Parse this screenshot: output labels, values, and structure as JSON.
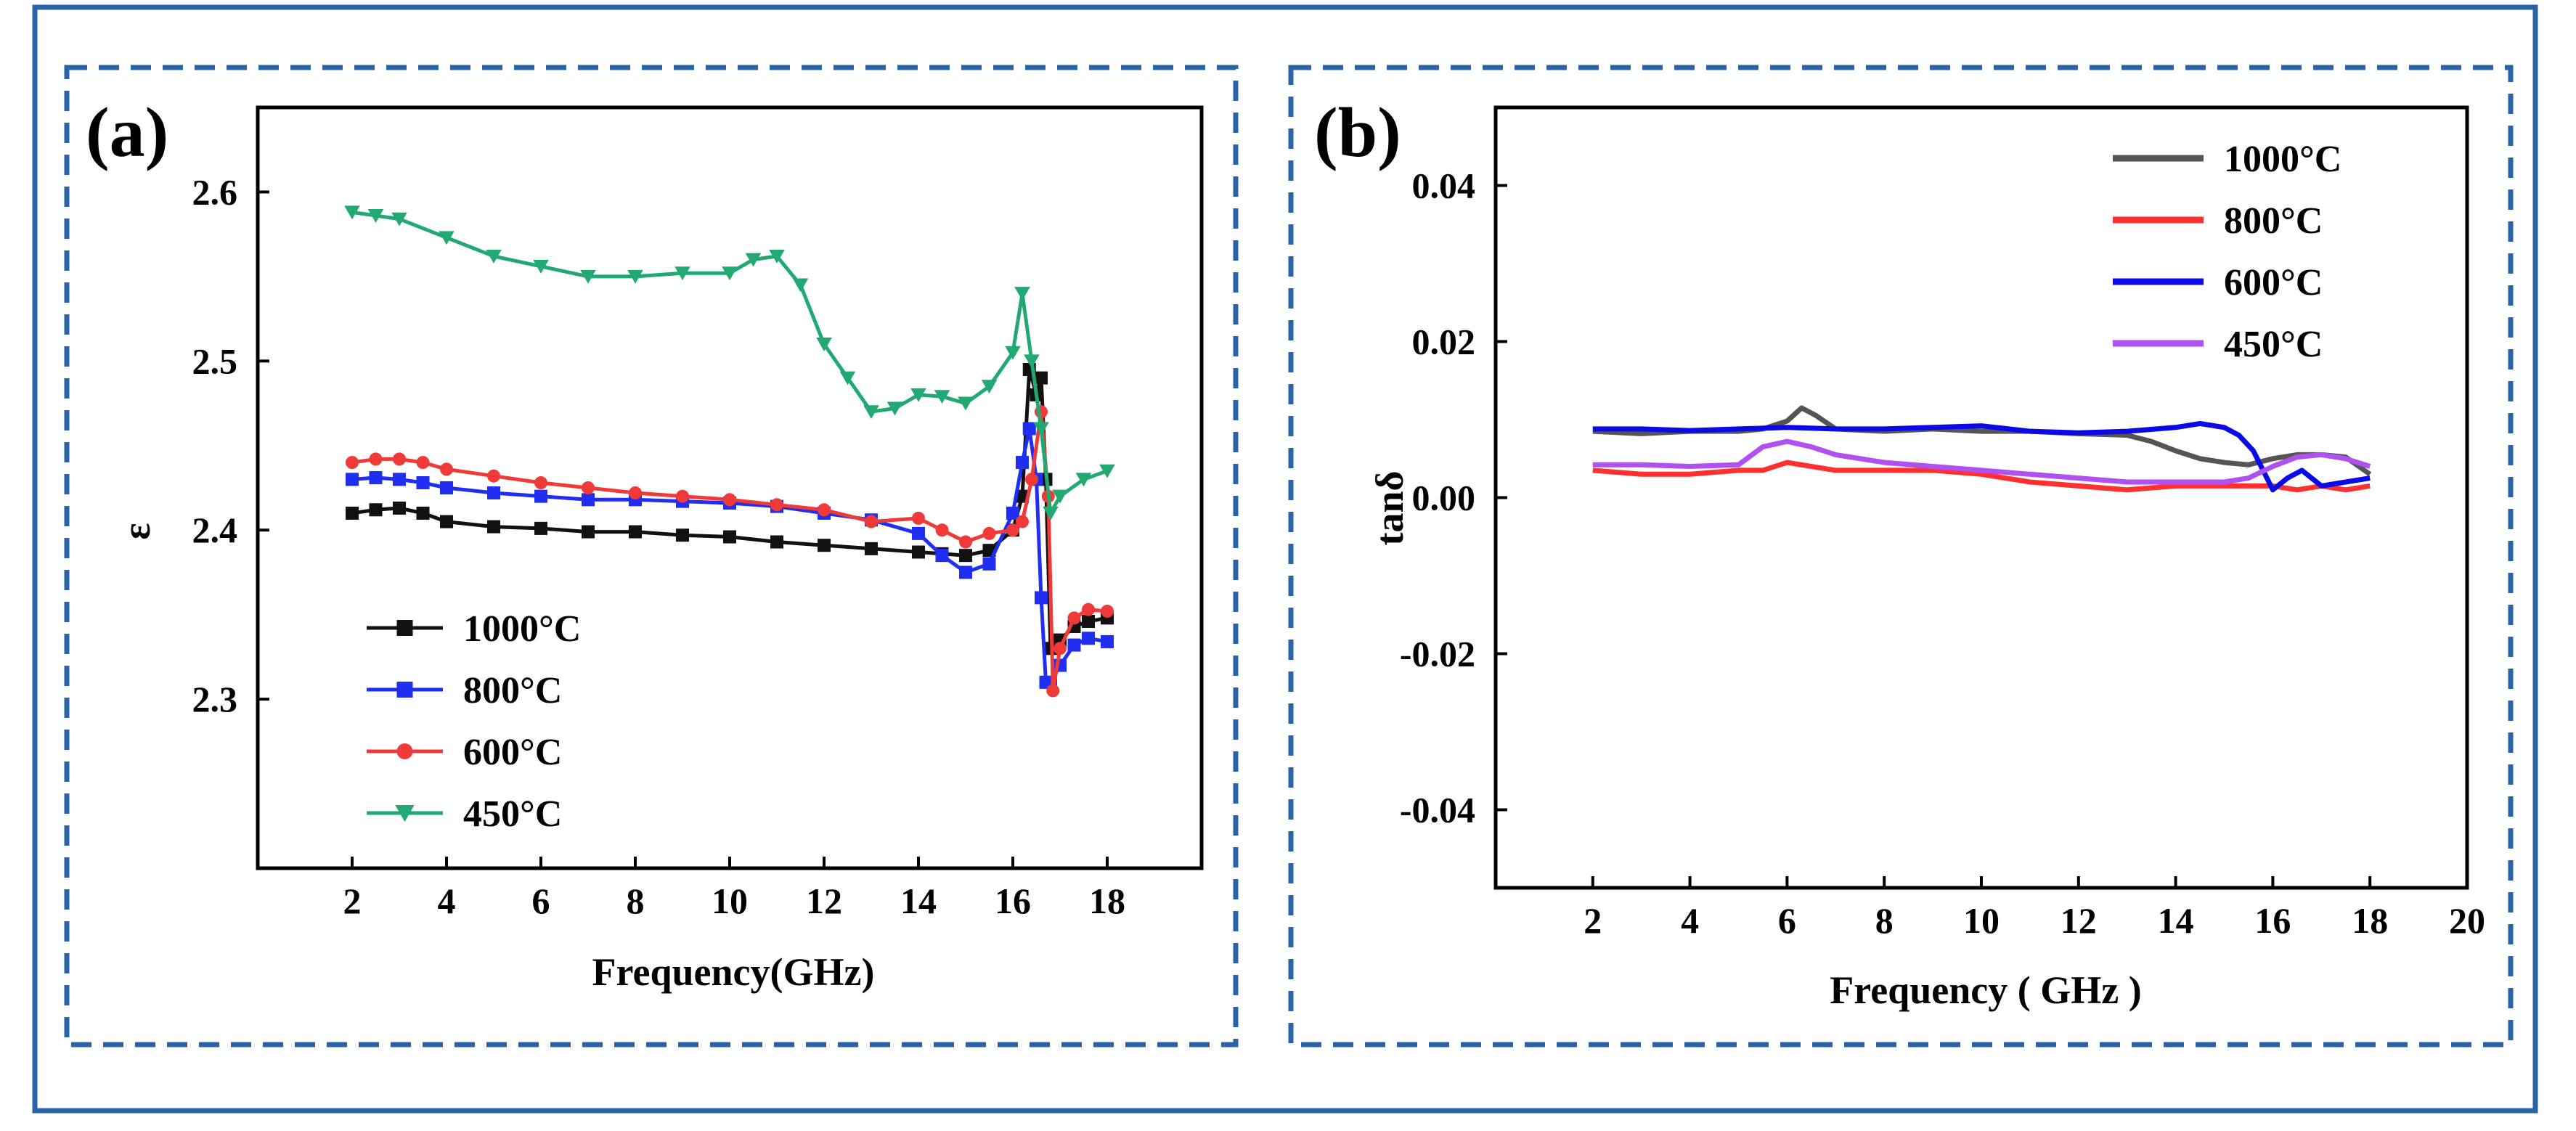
{
  "colors": {
    "frame": "#2a63a8",
    "s1000": "#111111",
    "s800": "#1f2ef0",
    "s600": "#f03a3a",
    "s450": "#22a872",
    "b1000": "#555555",
    "b800": "#ff3030",
    "b600": "#0a0ae6",
    "b450": "#b050f0"
  },
  "chart_data": [
    {
      "type": "line",
      "panel_label": "(a)",
      "title": "",
      "xlabel": "Frequency(GHz)",
      "ylabel": "ε",
      "xlim": [
        0,
        20
      ],
      "ylim": [
        2.2,
        2.65
      ],
      "xticks": [
        2,
        4,
        6,
        8,
        10,
        12,
        14,
        16,
        18
      ],
      "yticks": [
        2.3,
        2.4,
        2.5,
        2.6
      ],
      "ytick_labels": [
        "2.3",
        "2.4",
        "2.5",
        "2.6"
      ],
      "legend_position": "lower-left",
      "series": [
        {
          "name": "1000°C",
          "color_key": "s1000",
          "marker": "square",
          "x": [
            2,
            2.5,
            3,
            3.5,
            4,
            5,
            6,
            7,
            8,
            9,
            10,
            11,
            12,
            13,
            14,
            14.5,
            15,
            15.5,
            16,
            16.2,
            16.35,
            16.5,
            16.6,
            16.7,
            16.8,
            17,
            17.3,
            17.6,
            18
          ],
          "values": [
            2.41,
            2.412,
            2.413,
            2.41,
            2.405,
            2.402,
            2.401,
            2.399,
            2.399,
            2.397,
            2.396,
            2.393,
            2.391,
            2.389,
            2.387,
            2.386,
            2.385,
            2.388,
            2.4,
            2.42,
            2.495,
            2.48,
            2.49,
            2.43,
            2.33,
            2.335,
            2.343,
            2.346,
            2.348
          ]
        },
        {
          "name": "800°C",
          "color_key": "s800",
          "marker": "square",
          "x": [
            2,
            2.5,
            3,
            3.5,
            4,
            5,
            6,
            7,
            8,
            9,
            10,
            11,
            12,
            13,
            14,
            14.5,
            15,
            15.5,
            16,
            16.2,
            16.35,
            16.5,
            16.6,
            16.7,
            16.8,
            17,
            17.3,
            17.6,
            18
          ],
          "values": [
            2.43,
            2.431,
            2.43,
            2.428,
            2.425,
            2.422,
            2.42,
            2.418,
            2.418,
            2.417,
            2.416,
            2.414,
            2.41,
            2.406,
            2.398,
            2.385,
            2.375,
            2.38,
            2.41,
            2.44,
            2.46,
            2.43,
            2.36,
            2.31,
            2.31,
            2.32,
            2.332,
            2.336,
            2.334
          ]
        },
        {
          "name": "600°C",
          "color_key": "s600",
          "marker": "circle",
          "x": [
            2,
            2.5,
            3,
            3.5,
            4,
            5,
            6,
            7,
            8,
            9,
            10,
            11,
            12,
            13,
            14,
            14.5,
            15,
            15.5,
            16,
            16.2,
            16.4,
            16.6,
            16.75,
            16.85,
            17,
            17.3,
            17.6,
            18
          ],
          "values": [
            2.44,
            2.442,
            2.442,
            2.44,
            2.436,
            2.432,
            2.428,
            2.425,
            2.422,
            2.42,
            2.418,
            2.415,
            2.412,
            2.405,
            2.407,
            2.4,
            2.393,
            2.398,
            2.4,
            2.405,
            2.43,
            2.47,
            2.42,
            2.305,
            2.33,
            2.348,
            2.353,
            2.352
          ]
        },
        {
          "name": "450°C",
          "color_key": "s450",
          "marker": "triangle-down",
          "x": [
            2,
            2.5,
            3,
            4,
            5,
            6,
            7,
            8,
            9,
            10,
            10.5,
            11,
            11.5,
            12,
            12.5,
            13,
            13.5,
            14,
            14.5,
            15,
            15.5,
            16,
            16.2,
            16.4,
            16.6,
            16.8,
            17,
            17.5,
            18
          ],
          "values": [
            2.588,
            2.586,
            2.584,
            2.573,
            2.562,
            2.556,
            2.55,
            2.55,
            2.552,
            2.552,
            2.56,
            2.562,
            2.545,
            2.51,
            2.49,
            2.47,
            2.472,
            2.48,
            2.479,
            2.475,
            2.485,
            2.505,
            2.54,
            2.5,
            2.46,
            2.41,
            2.42,
            2.43,
            2.435
          ]
        }
      ]
    },
    {
      "type": "line",
      "panel_label": "(b)",
      "title": "",
      "xlabel": "Frequency ( GHz )",
      "ylabel": "tanδ",
      "xlim": [
        0,
        20
      ],
      "ylim": [
        -0.05,
        0.05
      ],
      "xticks": [
        2,
        4,
        6,
        8,
        10,
        12,
        14,
        16,
        18,
        20
      ],
      "yticks": [
        -0.04,
        -0.02,
        0,
        0.02,
        0.04
      ],
      "ytick_labels": [
        "-0.04",
        "-0.02",
        "0.00",
        "0.02",
        "0.04"
      ],
      "legend_position": "top-right",
      "series": [
        {
          "name": "1000°C",
          "color_key": "b1000",
          "x": [
            2,
            3,
            4,
            5,
            5.5,
            6,
            6.3,
            6.6,
            7,
            8,
            9,
            10,
            11,
            12,
            13,
            13.5,
            14,
            14.5,
            15,
            15.5,
            16,
            16.5,
            17,
            17.5,
            18
          ],
          "values": [
            0.0085,
            0.0082,
            0.0085,
            0.0085,
            0.0088,
            0.0098,
            0.0115,
            0.0105,
            0.0088,
            0.0085,
            0.0088,
            0.0085,
            0.0085,
            0.0082,
            0.008,
            0.0072,
            0.006,
            0.005,
            0.0045,
            0.0042,
            0.005,
            0.0055,
            0.0055,
            0.0052,
            0.003
          ]
        },
        {
          "name": "800°C",
          "color_key": "b800",
          "x": [
            2,
            3,
            4,
            5,
            5.5,
            6,
            6.5,
            7,
            8,
            9,
            10,
            11,
            12,
            13,
            14,
            15,
            16,
            16.5,
            17,
            17.5,
            18
          ],
          "values": [
            0.0035,
            0.003,
            0.003,
            0.0035,
            0.0035,
            0.0045,
            0.004,
            0.0035,
            0.0035,
            0.0035,
            0.003,
            0.002,
            0.0015,
            0.001,
            0.0015,
            0.0015,
            0.0015,
            0.001,
            0.0015,
            0.001,
            0.0015
          ]
        },
        {
          "name": "600°C",
          "color_key": "b600",
          "x": [
            2,
            3,
            4,
            5,
            6,
            7,
            8,
            9,
            10,
            11,
            12,
            13,
            14,
            14.5,
            15,
            15.3,
            15.6,
            16,
            16.3,
            16.6,
            17,
            17.5,
            18
          ],
          "values": [
            0.0088,
            0.0088,
            0.0086,
            0.0088,
            0.009,
            0.0088,
            0.0088,
            0.009,
            0.0092,
            0.0085,
            0.0083,
            0.0085,
            0.009,
            0.0095,
            0.009,
            0.008,
            0.006,
            0.001,
            0.0025,
            0.0035,
            0.0015,
            0.002,
            0.0025
          ]
        },
        {
          "name": "450°C",
          "color_key": "b450",
          "x": [
            2,
            3,
            4,
            5,
            5.5,
            6,
            6.5,
            7,
            8,
            9,
            10,
            11,
            12,
            13,
            14,
            15,
            15.5,
            16,
            16.5,
            17,
            17.5,
            18
          ],
          "values": [
            0.0042,
            0.0042,
            0.004,
            0.0042,
            0.0065,
            0.0072,
            0.0065,
            0.0055,
            0.0045,
            0.004,
            0.0035,
            0.003,
            0.0025,
            0.002,
            0.002,
            0.002,
            0.0025,
            0.004,
            0.0052,
            0.0055,
            0.005,
            0.004
          ]
        }
      ]
    }
  ]
}
